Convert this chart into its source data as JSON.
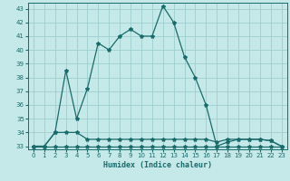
{
  "xlabel": "Humidex (Indice chaleur)",
  "xlim": [
    0,
    23
  ],
  "ylim": [
    33,
    43
  ],
  "yticks": [
    33,
    34,
    35,
    36,
    37,
    38,
    39,
    40,
    41,
    42,
    43
  ],
  "xticks": [
    0,
    1,
    2,
    3,
    4,
    5,
    6,
    7,
    8,
    9,
    10,
    11,
    12,
    13,
    14,
    15,
    16,
    17,
    18,
    19,
    20,
    21,
    22,
    23
  ],
  "bg_color": "#c5e8e8",
  "grid_color": "#9ecece",
  "line_color": "#1a6b6b",
  "line1_x": [
    0,
    1,
    2,
    3,
    4,
    5,
    6,
    7,
    8,
    9,
    10,
    11,
    12,
    13,
    14,
    15,
    16,
    17,
    18,
    19,
    20,
    21,
    22,
    23
  ],
  "line1_y": [
    33,
    33,
    33,
    33,
    33,
    33,
    33,
    33,
    33,
    33,
    33,
    33,
    33,
    33,
    33,
    33,
    33,
    33,
    33,
    33,
    33,
    33,
    33,
    33
  ],
  "line2_x": [
    0,
    1,
    2,
    3,
    4,
    5,
    6,
    7,
    8,
    9,
    10,
    11,
    12,
    13,
    14,
    15,
    16,
    17,
    18,
    19,
    20,
    21,
    22,
    23
  ],
  "line2_y": [
    33,
    33,
    34,
    34,
    34,
    33.5,
    33.5,
    33.5,
    33.5,
    33.5,
    33.5,
    33.5,
    33.5,
    33.5,
    33.5,
    33.5,
    33.5,
    33.3,
    33.5,
    33.5,
    33.5,
    33.5,
    33.4,
    33
  ],
  "line3_x": [
    0,
    1,
    2,
    3,
    4,
    5,
    6,
    7,
    8,
    9,
    10,
    11,
    12,
    13,
    14,
    15,
    16,
    17,
    18,
    19,
    20,
    21,
    22,
    23
  ],
  "line3_y": [
    33,
    33,
    34,
    38.5,
    35,
    37.2,
    40.5,
    40.0,
    41.0,
    41.5,
    41.0,
    41.0,
    43.2,
    42.0,
    39.5,
    38.0,
    36.0,
    33.0,
    33.3,
    33.5,
    33.5,
    33.5,
    33.4,
    33.0
  ]
}
